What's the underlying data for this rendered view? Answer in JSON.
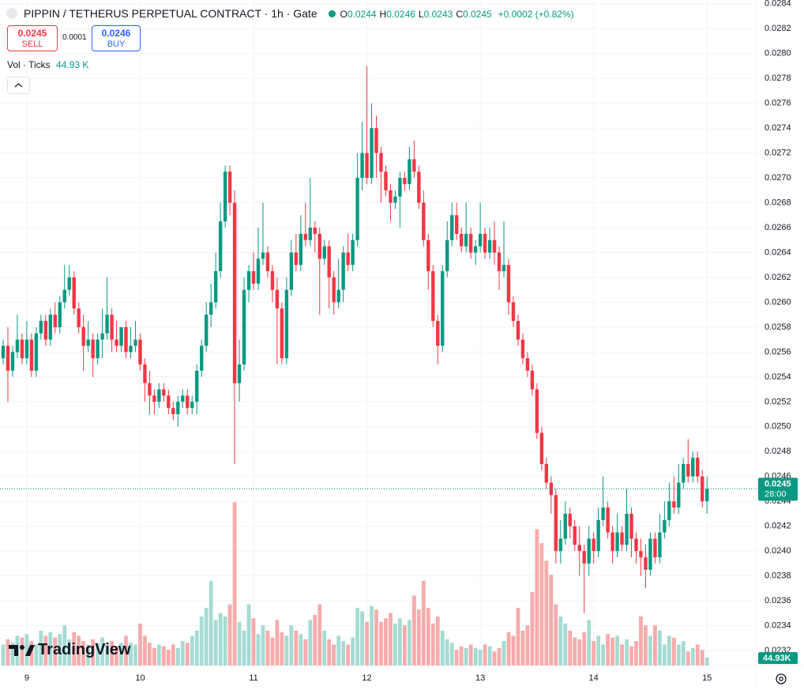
{
  "header": {
    "title": "PIPPIN / TETHERUS PERPETUAL CONTRACT · 1h · Gate",
    "ohlc": [
      {
        "label": "O",
        "value": "0.0244"
      },
      {
        "label": "H",
        "value": "0.0246"
      },
      {
        "label": "L",
        "value": "0.0243"
      },
      {
        "label": "C",
        "value": "0.0245"
      }
    ],
    "change": "+0.0002 (+0.82%)"
  },
  "trade": {
    "sell_price": "0.0245",
    "sell_label": "SELL",
    "spread": "0.0001",
    "buy_price": "0.0246",
    "buy_label": "BUY"
  },
  "volume_legend": {
    "label": "Vol · Ticks",
    "value": "44.93 K"
  },
  "logo": "TradingView",
  "chart_data": {
    "type": "candlestick",
    "open": [
      0.02555,
      0.02565,
      0.02545,
      0.0256,
      0.0257,
      0.02555,
      0.0257,
      0.02545,
      0.02575,
      0.02585,
      0.0257,
      0.0259,
      0.0258,
      0.026,
      0.0261,
      0.0262,
      0.02595,
      0.0258,
      0.02565,
      0.0257,
      0.02555,
      0.0257,
      0.02575,
      0.0259,
      0.0257,
      0.02565,
      0.0258,
      0.0256,
      0.02565,
      0.0257,
      0.0255,
      0.02535,
      0.02525,
      0.0252,
      0.0253,
      0.02525,
      0.02515,
      0.0251,
      0.0252,
      0.02525,
      0.02515,
      0.0252,
      0.02545,
      0.02565,
      0.0259,
      0.026,
      0.02625,
      0.02665,
      0.02705,
      0.0268,
      0.02535,
      0.0255,
      0.0261,
      0.02625,
      0.02615,
      0.02635,
      0.0264,
      0.02625,
      0.0261,
      0.02595,
      0.02555,
      0.0261,
      0.0264,
      0.0263,
      0.02655,
      0.0265,
      0.0266,
      0.02655,
      0.02635,
      0.02645,
      0.0262,
      0.026,
      0.0261,
      0.0264,
      0.0263,
      0.0265,
      0.027,
      0.0272,
      0.027,
      0.0274,
      0.0272,
      0.02705,
      0.0269,
      0.0268,
      0.02685,
      0.027,
      0.02695,
      0.02715,
      0.02705,
      0.0268,
      0.0265,
      0.02625,
      0.02585,
      0.02565,
      0.02625,
      0.0265,
      0.0267,
      0.02655,
      0.02645,
      0.02655,
      0.0264,
      0.02645,
      0.02655,
      0.0264,
      0.0265,
      0.0264,
      0.02625,
      0.0263,
      0.026,
      0.02585,
      0.0257,
      0.02555,
      0.02545,
      0.0253,
      0.02495,
      0.0247,
      0.02455,
      0.02445,
      0.024,
      0.0241,
      0.0243,
      0.0242,
      0.02405,
      0.024,
      0.0239,
      0.0241,
      0.024,
      0.02425,
      0.02435,
      0.02415,
      0.024,
      0.02415,
      0.02405,
      0.0243,
      0.0241,
      0.024,
      0.02395,
      0.02385,
      0.0241,
      0.02395,
      0.02415,
      0.02425,
      0.0244,
      0.02435,
      0.02455,
      0.0247,
      0.0246,
      0.02475,
      0.0246,
      0.0244
    ],
    "high": [
      0.0257,
      0.0258,
      0.02565,
      0.0259,
      0.02575,
      0.02585,
      0.02575,
      0.0258,
      0.0259,
      0.0259,
      0.02595,
      0.026,
      0.02605,
      0.0263,
      0.0263,
      0.02625,
      0.026,
      0.0259,
      0.02585,
      0.02575,
      0.02575,
      0.02595,
      0.0262,
      0.02595,
      0.02585,
      0.0258,
      0.02585,
      0.0258,
      0.02585,
      0.02575,
      0.02555,
      0.02545,
      0.0253,
      0.02535,
      0.02535,
      0.0253,
      0.0252,
      0.02525,
      0.0253,
      0.0253,
      0.02525,
      0.0255,
      0.0257,
      0.026,
      0.02615,
      0.0264,
      0.0268,
      0.0271,
      0.0271,
      0.0269,
      0.0257,
      0.0262,
      0.0263,
      0.0264,
      0.0266,
      0.0268,
      0.02645,
      0.0263,
      0.0262,
      0.026,
      0.0262,
      0.0265,
      0.02655,
      0.0267,
      0.0268,
      0.027,
      0.02665,
      0.0266,
      0.0265,
      0.0265,
      0.02625,
      0.02635,
      0.02645,
      0.02655,
      0.02655,
      0.0272,
      0.02745,
      0.0279,
      0.0276,
      0.0275,
      0.02725,
      0.0271,
      0.02695,
      0.0269,
      0.02705,
      0.02705,
      0.02725,
      0.0273,
      0.0271,
      0.0269,
      0.02655,
      0.0263,
      0.0259,
      0.0263,
      0.02665,
      0.0268,
      0.0268,
      0.0266,
      0.0268,
      0.0266,
      0.0265,
      0.0268,
      0.0266,
      0.0266,
      0.02665,
      0.02645,
      0.02665,
      0.02635,
      0.02605,
      0.0259,
      0.02575,
      0.0256,
      0.0255,
      0.02535,
      0.025,
      0.02475,
      0.0246,
      0.0245,
      0.02425,
      0.0244,
      0.02435,
      0.02425,
      0.0242,
      0.02405,
      0.0242,
      0.02415,
      0.02435,
      0.0246,
      0.0244,
      0.0242,
      0.0243,
      0.0242,
      0.0245,
      0.02435,
      0.02415,
      0.0241,
      0.02405,
      0.02415,
      0.02415,
      0.0243,
      0.0244,
      0.02455,
      0.0246,
      0.0247,
      0.02475,
      0.0249,
      0.0248,
      0.0248,
      0.02465,
      0.0246
    ],
    "low": [
      0.0255,
      0.0252,
      0.0254,
      0.02555,
      0.0255,
      0.0255,
      0.0254,
      0.0254,
      0.0257,
      0.02565,
      0.02565,
      0.02575,
      0.02575,
      0.02595,
      0.02605,
      0.0259,
      0.02575,
      0.02545,
      0.0256,
      0.0254,
      0.0255,
      0.02555,
      0.0257,
      0.0256,
      0.0256,
      0.0256,
      0.02555,
      0.02555,
      0.0256,
      0.02545,
      0.0252,
      0.0251,
      0.0251,
      0.02515,
      0.0252,
      0.0251,
      0.02505,
      0.025,
      0.02515,
      0.0251,
      0.0251,
      0.0251,
      0.0254,
      0.0256,
      0.0258,
      0.02595,
      0.0262,
      0.0266,
      0.0267,
      0.0247,
      0.0252,
      0.02545,
      0.026,
      0.0261,
      0.0261,
      0.0263,
      0.0262,
      0.026,
      0.0255,
      0.0255,
      0.0255,
      0.02605,
      0.02625,
      0.02625,
      0.02645,
      0.02645,
      0.0264,
      0.0259,
      0.0263,
      0.02595,
      0.0259,
      0.02595,
      0.026,
      0.02625,
      0.02625,
      0.02645,
      0.0269,
      0.02695,
      0.02695,
      0.027,
      0.0268,
      0.02685,
      0.02665,
      0.02675,
      0.0266,
      0.0269,
      0.0269,
      0.027,
      0.02675,
      0.02645,
      0.0261,
      0.0258,
      0.0255,
      0.0256,
      0.0262,
      0.02645,
      0.0265,
      0.0264,
      0.0264,
      0.02635,
      0.0263,
      0.0264,
      0.02635,
      0.02635,
      0.0263,
      0.0261,
      0.0262,
      0.0259,
      0.0258,
      0.02565,
      0.0255,
      0.0254,
      0.02525,
      0.0249,
      0.02465,
      0.0245,
      0.0243,
      0.0239,
      0.0239,
      0.02405,
      0.0241,
      0.024,
      0.0238,
      0.0235,
      0.0238,
      0.0239,
      0.02395,
      0.0242,
      0.0241,
      0.0239,
      0.02395,
      0.024,
      0.024,
      0.02395,
      0.0239,
      0.0238,
      0.0237,
      0.0238,
      0.0239,
      0.0239,
      0.0241,
      0.0242,
      0.0243,
      0.0243,
      0.0245,
      0.02455,
      0.02455,
      0.02455,
      0.02435,
      0.0243
    ],
    "close": [
      0.02565,
      0.02545,
      0.0256,
      0.0257,
      0.02555,
      0.0257,
      0.02545,
      0.02575,
      0.02585,
      0.0257,
      0.0259,
      0.0258,
      0.026,
      0.0261,
      0.0262,
      0.02595,
      0.0258,
      0.02565,
      0.0257,
      0.02555,
      0.0257,
      0.02575,
      0.0259,
      0.0257,
      0.02565,
      0.0258,
      0.0256,
      0.02565,
      0.0257,
      0.0255,
      0.02535,
      0.02525,
      0.0252,
      0.0253,
      0.02525,
      0.02515,
      0.0251,
      0.0252,
      0.02525,
      0.02515,
      0.0252,
      0.02545,
      0.02565,
      0.0259,
      0.026,
      0.02625,
      0.02665,
      0.02705,
      0.0268,
      0.02535,
      0.0255,
      0.0261,
      0.02625,
      0.02615,
      0.02635,
      0.0264,
      0.02625,
      0.0261,
      0.02595,
      0.02555,
      0.0261,
      0.0264,
      0.0263,
      0.02655,
      0.0265,
      0.0266,
      0.02655,
      0.02635,
      0.02645,
      0.0262,
      0.026,
      0.0261,
      0.0264,
      0.0263,
      0.0265,
      0.027,
      0.0272,
      0.027,
      0.0274,
      0.0272,
      0.02705,
      0.0269,
      0.0268,
      0.02685,
      0.027,
      0.02695,
      0.02715,
      0.02705,
      0.0268,
      0.0265,
      0.02625,
      0.02585,
      0.02565,
      0.02625,
      0.0265,
      0.0267,
      0.02655,
      0.02645,
      0.02655,
      0.0264,
      0.02645,
      0.02655,
      0.0264,
      0.0265,
      0.0264,
      0.02625,
      0.0263,
      0.026,
      0.02585,
      0.0257,
      0.02555,
      0.02545,
      0.0253,
      0.02495,
      0.0247,
      0.02455,
      0.02445,
      0.024,
      0.0241,
      0.0243,
      0.0242,
      0.02405,
      0.024,
      0.0239,
      0.0241,
      0.024,
      0.02425,
      0.02435,
      0.02415,
      0.024,
      0.02415,
      0.02405,
      0.0243,
      0.0241,
      0.024,
      0.02395,
      0.02385,
      0.0241,
      0.02395,
      0.02415,
      0.02425,
      0.0244,
      0.02435,
      0.02455,
      0.0247,
      0.0246,
      0.02475,
      0.0246,
      0.0244,
      0.0245
    ],
    "volume": [
      120,
      150,
      130,
      170,
      160,
      180,
      140,
      120,
      200,
      170,
      190,
      160,
      180,
      230,
      150,
      190,
      170,
      140,
      120,
      150,
      130,
      160,
      120,
      140,
      110,
      130,
      170,
      130,
      120,
      240,
      170,
      130,
      100,
      120,
      110,
      90,
      120,
      100,
      140,
      130,
      170,
      200,
      280,
      330,
      485,
      260,
      300,
      280,
      350,
      935,
      250,
      200,
      350,
      270,
      180,
      230,
      200,
      160,
      260,
      190,
      170,
      230,
      200,
      180,
      150,
      260,
      290,
      350,
      200,
      150,
      120,
      170,
      140,
      120,
      160,
      330,
      310,
      250,
      340,
      320,
      250,
      270,
      300,
      240,
      270,
      230,
      260,
      400,
      320,
      485,
      330,
      240,
      280,
      200,
      150,
      130,
      90,
      110,
      100,
      120,
      100,
      90,
      120,
      110,
      80,
      100,
      140,
      190,
      170,
      330,
      200,
      230,
      420,
      780,
      700,
      600,
      520,
      350,
      280,
      240,
      200,
      160,
      150,
      190,
      260,
      140,
      170,
      120,
      180,
      160,
      170,
      120,
      150,
      110,
      140,
      280,
      230,
      170,
      230,
      200,
      120,
      170,
      160,
      120,
      140,
      80,
      100,
      120,
      90,
      44.93
    ],
    "up_color": "#089981",
    "down_color": "#f23645",
    "volume_up_color": "#a5dbd3",
    "volume_down_color": "#f7abab",
    "ylim": [
      0.02308,
      0.02843
    ],
    "yticks": [
      0.0284,
      0.0282,
      {
        "value": 0.028,
        "label": "0.0280"
      },
      0.0278,
      0.0276,
      0.0274,
      0.0272,
      {
        "value": 0.027,
        "label": "0.0270"
      },
      0.0268,
      0.0266,
      0.0264,
      0.0262,
      {
        "value": 0.026,
        "label": "0.0260"
      },
      0.0258,
      0.0256,
      0.0254,
      0.0252,
      {
        "value": 0.025,
        "label": "0.0250"
      },
      0.0248,
      0.0246,
      0.0244,
      0.0242,
      {
        "value": 0.024,
        "label": "0.0240"
      },
      0.0238,
      0.0236,
      0.0234,
      0.0232
    ],
    "xlim": [
      -0.67,
      159.5
    ],
    "xticks": [
      {
        "value": 5,
        "label": "9"
      },
      {
        "value": 29,
        "label": "10"
      },
      {
        "value": 53,
        "label": "11"
      },
      {
        "value": 77,
        "label": "12"
      },
      {
        "value": 101,
        "label": "13"
      },
      {
        "value": 125,
        "label": "14"
      },
      {
        "value": 149,
        "label": "15"
      }
    ],
    "vlim": [
      0,
      950
    ],
    "last_price": 0.0245,
    "countdown": "28:00",
    "last_volume_label": "44.93K",
    "grid": true
  }
}
